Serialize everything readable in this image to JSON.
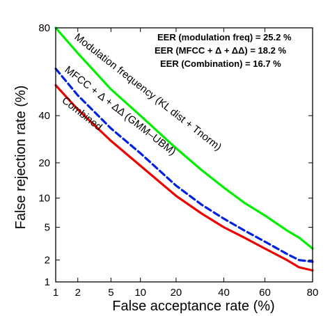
{
  "chart_data": {
    "type": "line",
    "title": "",
    "xlabel": "False acceptance rate (%)",
    "ylabel": "False rejection rate (%)",
    "xscale": "probit",
    "yscale": "probit",
    "xlim": [
      1,
      80
    ],
    "ylim": [
      1,
      80
    ],
    "x_ticks": [
      1,
      2,
      5,
      10,
      20,
      40,
      60,
      80
    ],
    "y_ticks": [
      1,
      2,
      5,
      10,
      20,
      40,
      80
    ],
    "x_tick_labels": [
      "1",
      "2",
      "5",
      "10",
      "20",
      "40",
      "60",
      "80"
    ],
    "y_tick_labels": [
      "1",
      "2",
      "5",
      "10",
      "20",
      "40",
      "80"
    ],
    "grid": false,
    "series": [
      {
        "name": "Modulation frequency (KL dist + Tnorm)",
        "color": "#00ee00",
        "dash": "solid",
        "x": [
          1,
          2,
          5,
          10,
          20,
          30,
          40,
          50,
          60,
          70,
          75,
          80
        ],
        "y": [
          80,
          70,
          53,
          40,
          25.5,
          17.5,
          12.5,
          9,
          6.7,
          4.6,
          3.8,
          2.8
        ]
      },
      {
        "name": "MFCC + Δ + ΔΔ (GMM–UBM)",
        "color": "#0022dd",
        "dash": "dashed",
        "x": [
          1,
          2,
          5,
          10,
          20,
          30,
          40,
          50,
          60,
          70,
          75,
          80
        ],
        "y": [
          63,
          50,
          34,
          23.5,
          13,
          8.6,
          6.2,
          4.6,
          3.4,
          2.4,
          2.0,
          1.9
        ]
      },
      {
        "name": "Combined",
        "color": "#ee0000",
        "dash": "solid",
        "x": [
          1,
          2,
          5,
          10,
          20,
          30,
          40,
          50,
          60,
          70,
          75,
          80
        ],
        "y": [
          55,
          43,
          28.5,
          19,
          10.5,
          7,
          5,
          3.8,
          2.8,
          2.0,
          1.6,
          1.45
        ]
      }
    ],
    "annotations": [
      "EER (modulation freq) = 25.2 %",
      "EER (MFCC + Δ + ΔΔ) = 18.2 %",
      "EER (Combination) = 16.7 %"
    ]
  }
}
